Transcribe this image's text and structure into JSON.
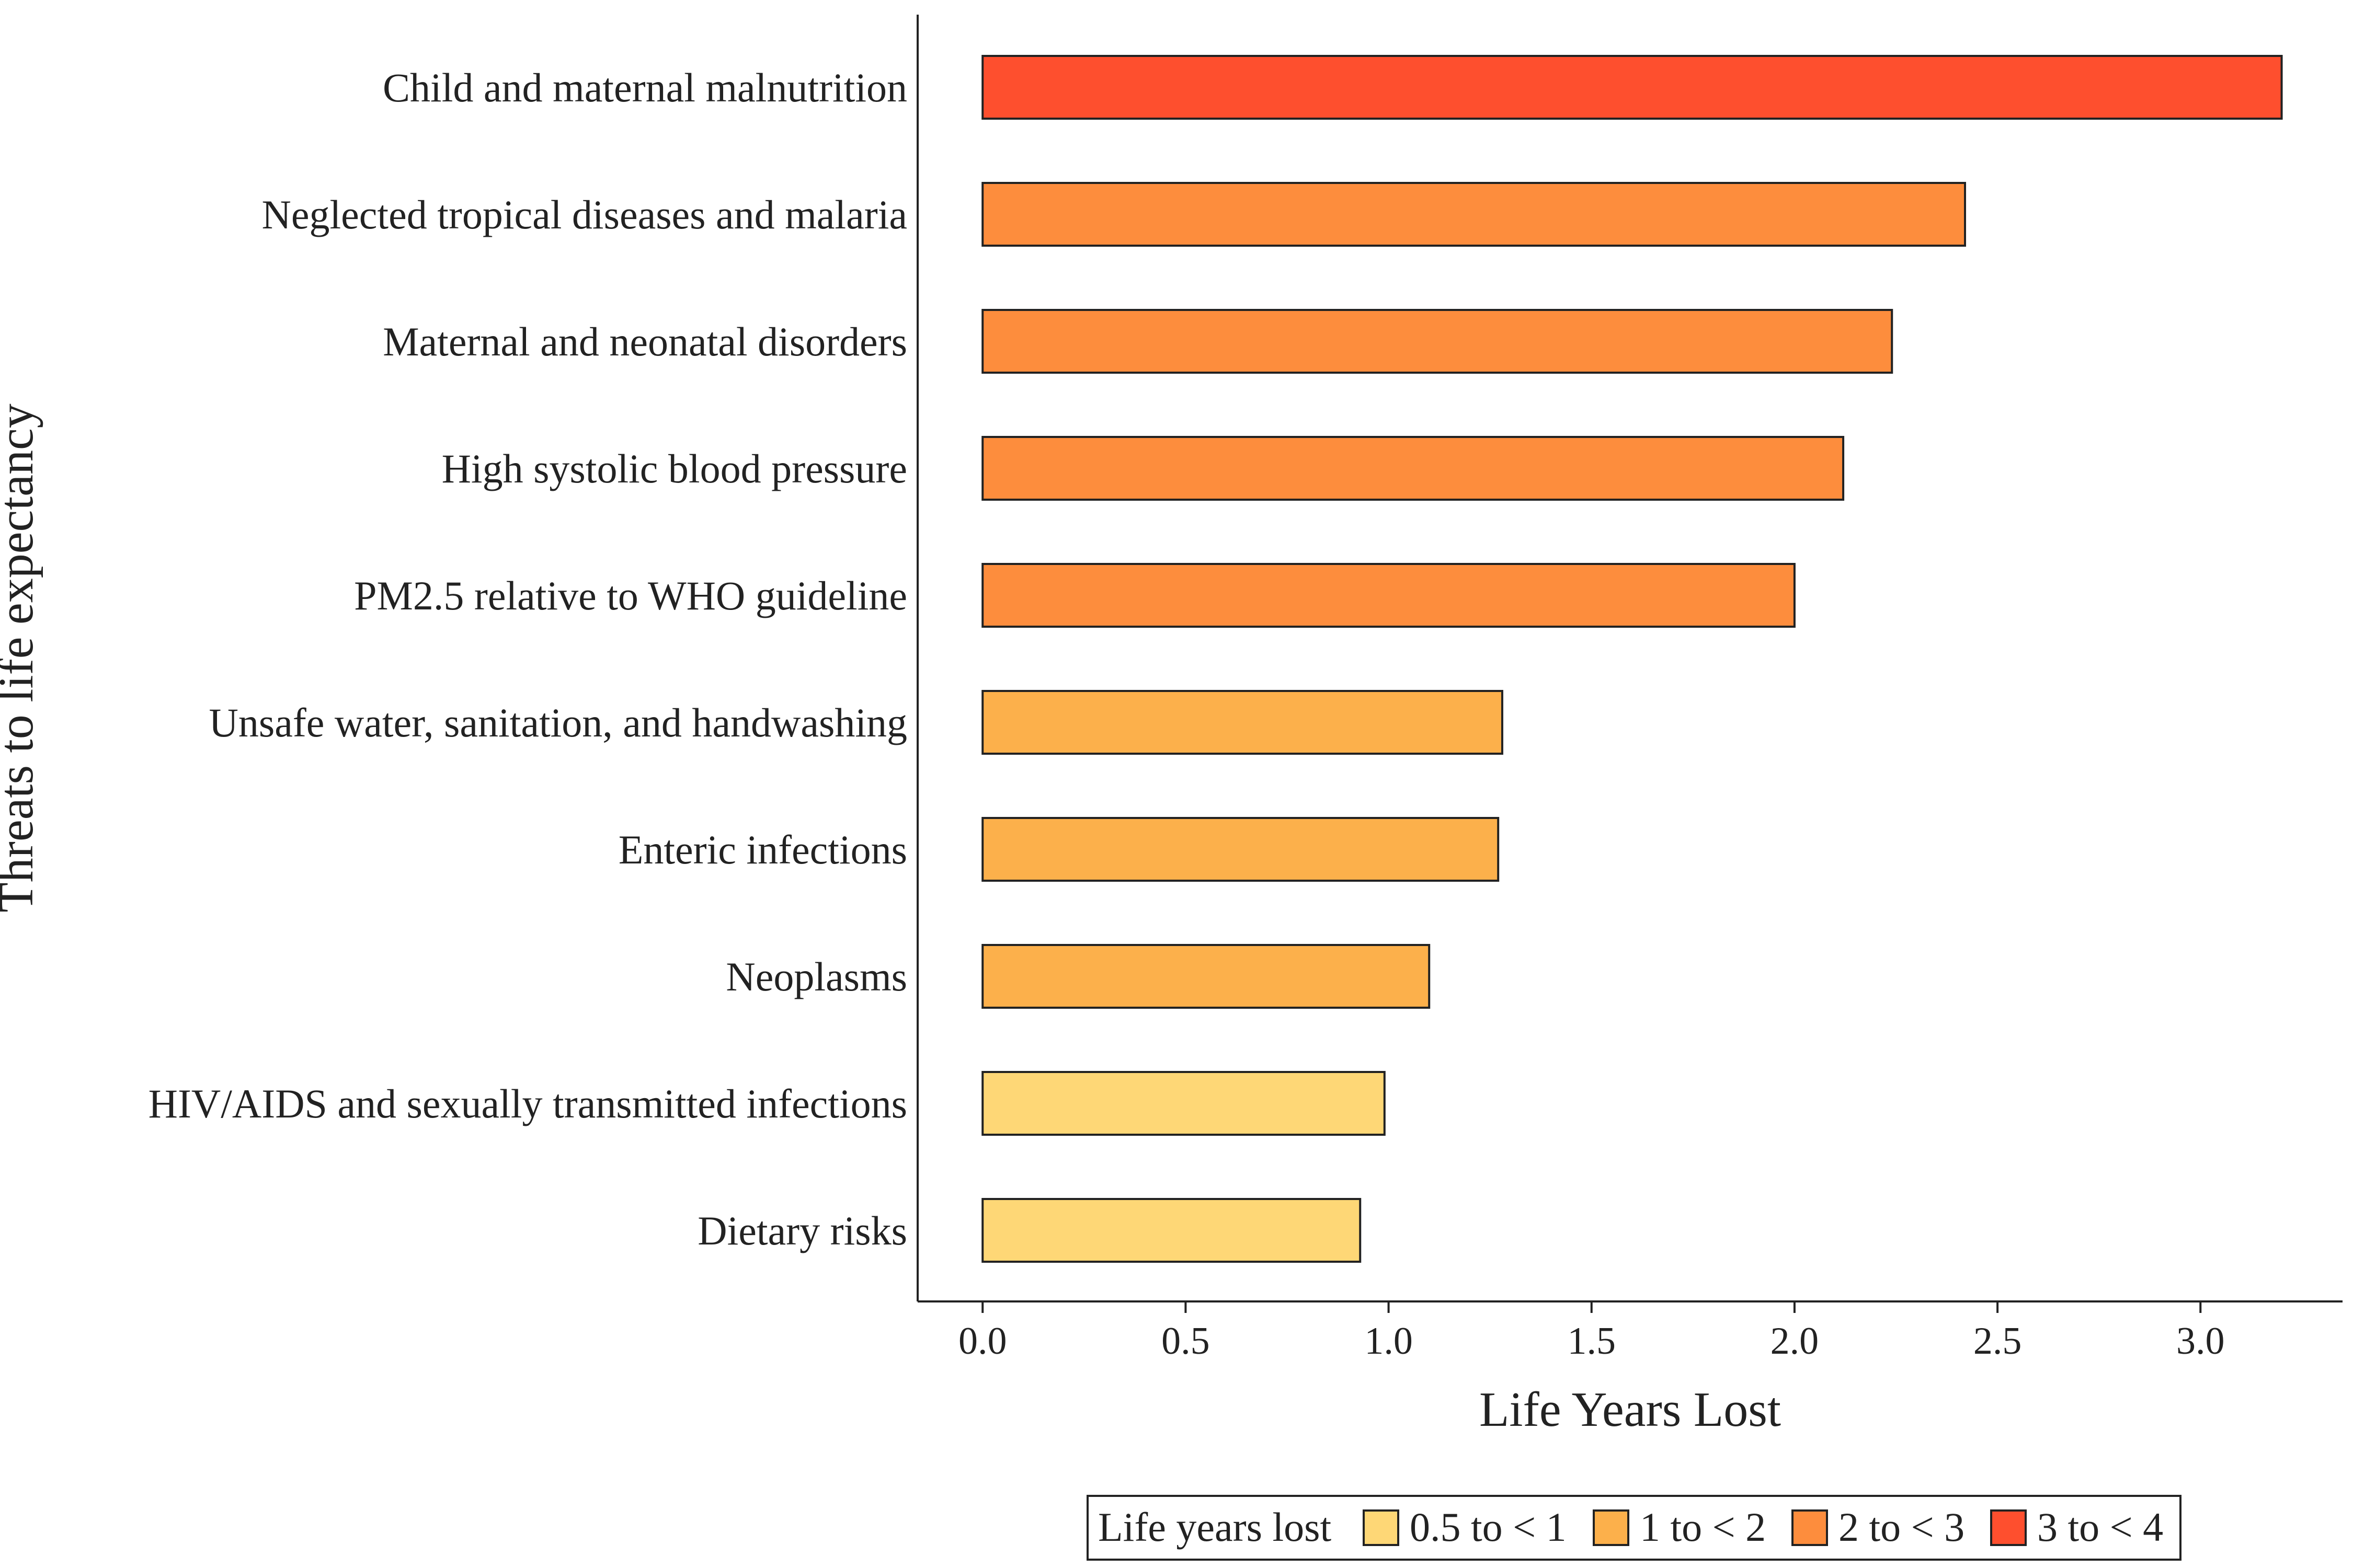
{
  "chart_data": {
    "type": "bar",
    "orientation": "horizontal",
    "categories": [
      "Child and maternal malnutrition",
      "Neglected tropical diseases and malaria",
      "Maternal and neonatal disorders",
      "High systolic blood pressure",
      "PM2.5 relative to WHO guideline",
      "Unsafe water, sanitation, and handwashing",
      "Enteric infections",
      "Neoplasms",
      "HIV/AIDS and sexually transmitted infections",
      "Dietary risks"
    ],
    "values": [
      3.2,
      2.42,
      2.24,
      2.12,
      2.0,
      1.28,
      1.27,
      1.1,
      0.99,
      0.93
    ],
    "groups": [
      "3 to < 4",
      "2 to < 3",
      "2 to < 3",
      "2 to < 3",
      "2 to < 3",
      "1 to < 2",
      "1 to < 2",
      "1 to < 2",
      "0.5 to < 1",
      "0.5 to < 1"
    ],
    "xlabel": "Life Years Lost",
    "ylabel": "Threats to life expectancy",
    "xlim": [
      -0.16,
      3.35
    ],
    "xticks": [
      0.0,
      0.5,
      1.0,
      1.5,
      2.0,
      2.5,
      3.0
    ],
    "xtick_labels": [
      "0.0",
      "0.5",
      "1.0",
      "1.5",
      "2.0",
      "2.5",
      "3.0"
    ],
    "grid": false,
    "legend": {
      "title": "Life years lost",
      "placement": "bottom",
      "entries": [
        {
          "label": "0.5 to < 1",
          "color": "#FED776"
        },
        {
          "label": "1 to < 2",
          "color": "#FCB04B"
        },
        {
          "label": "2 to < 3",
          "color": "#FD8D3D"
        },
        {
          "label": "3 to < 4",
          "color": "#FE4F2E"
        }
      ]
    }
  }
}
